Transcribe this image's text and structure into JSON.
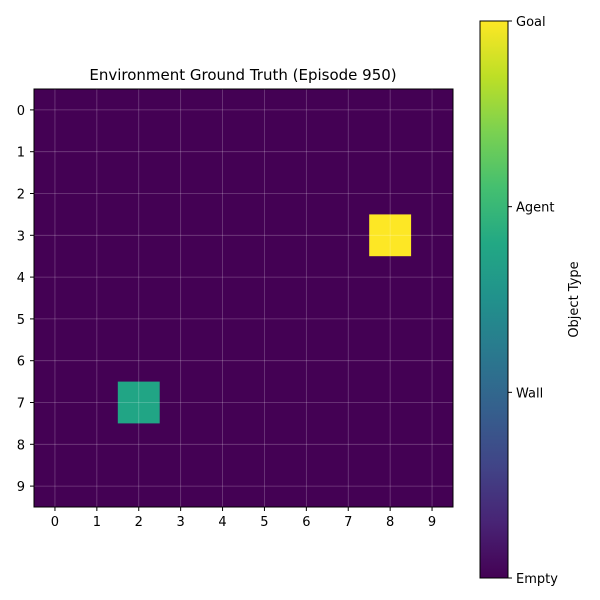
{
  "chart_data": {
    "type": "heatmap",
    "title": "Environment Ground Truth (Episode 950)",
    "rows": 10,
    "cols": 10,
    "x_ticks": [
      "0",
      "1",
      "2",
      "3",
      "4",
      "5",
      "6",
      "7",
      "8",
      "9"
    ],
    "y_ticks": [
      "0",
      "1",
      "2",
      "3",
      "4",
      "5",
      "6",
      "7",
      "8",
      "9"
    ],
    "grid": true,
    "colormap": "viridis",
    "vmin": 0,
    "vmax": 3,
    "cells": [
      {
        "row": 3,
        "col": 8,
        "value": 3,
        "label": "Goal"
      },
      {
        "row": 7,
        "col": 2,
        "value": 2,
        "label": "Agent"
      }
    ],
    "default_value": 0,
    "colorbar": {
      "label": "Object Type",
      "ticks": [
        {
          "value": 0,
          "label": "Empty"
        },
        {
          "value": 1,
          "label": "Wall"
        },
        {
          "value": 2,
          "label": "Agent"
        },
        {
          "value": 3,
          "label": "Goal"
        }
      ]
    },
    "colors": {
      "empty": "#440154",
      "wall": "#31688e",
      "agent": "#21a585",
      "goal": "#fde725"
    }
  }
}
